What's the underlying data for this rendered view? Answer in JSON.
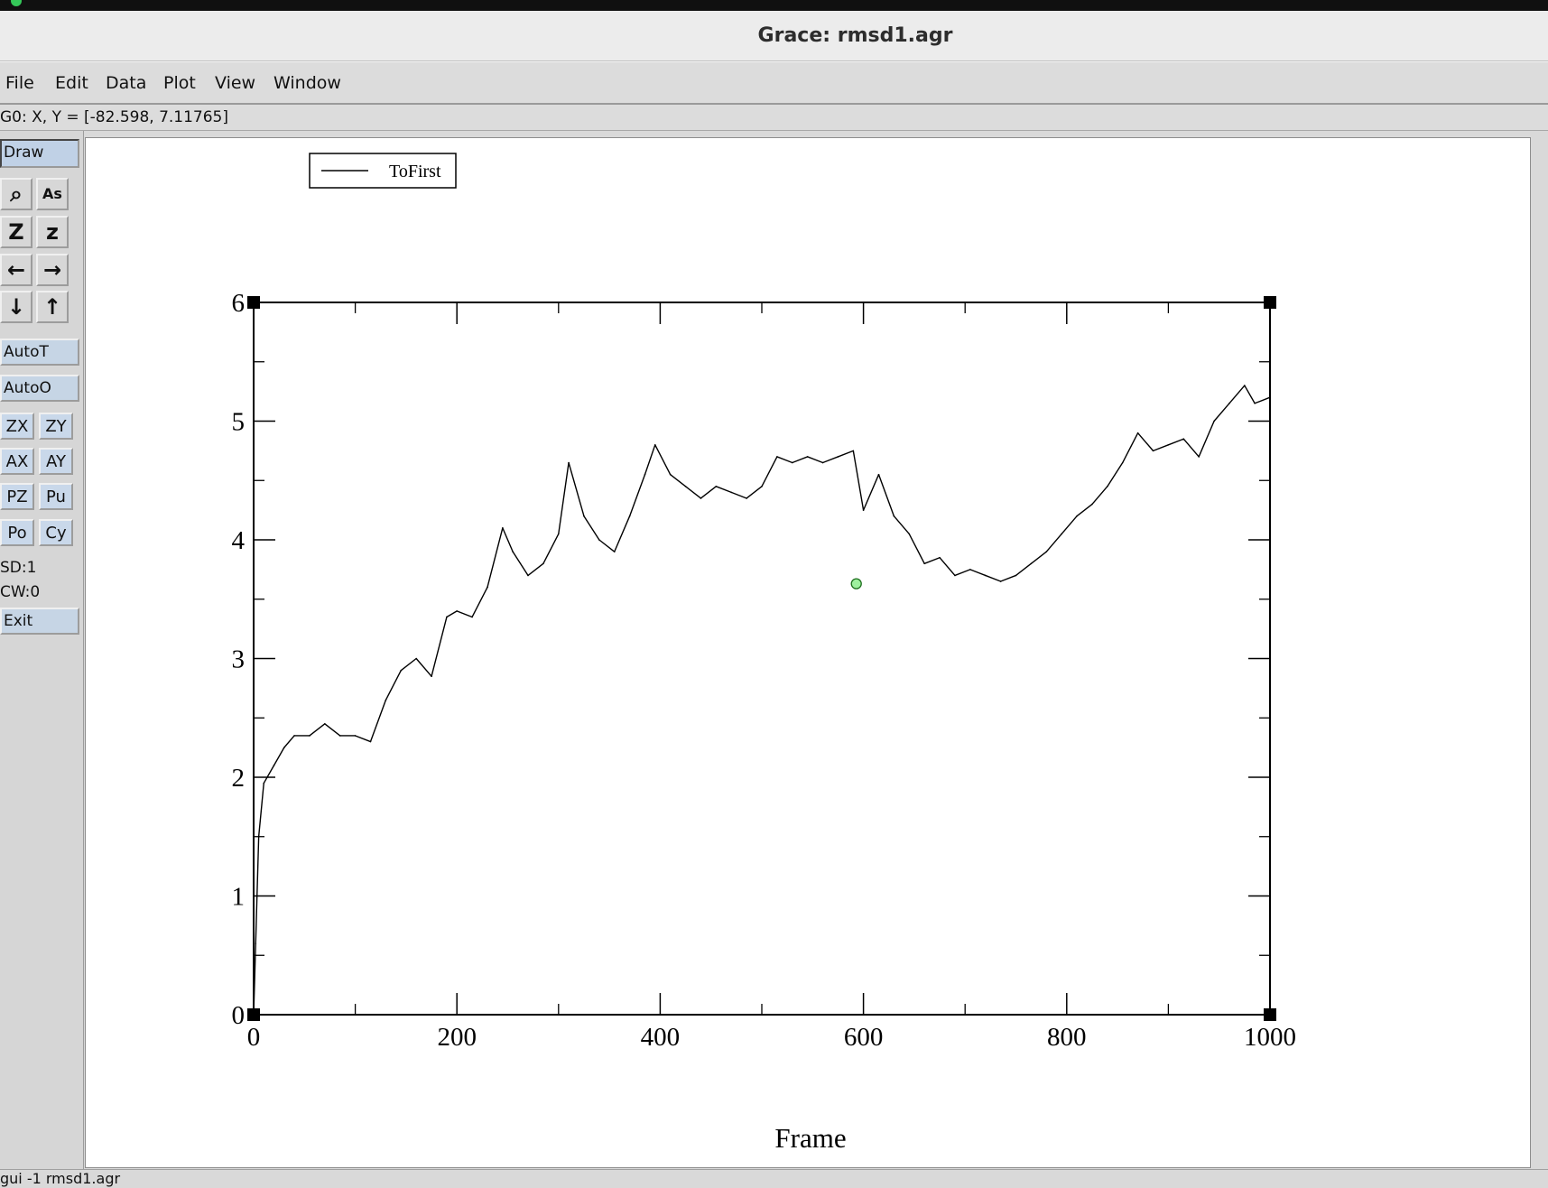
{
  "window": {
    "title": "Grace: rmsd1.agr"
  },
  "menu": {
    "items": [
      "File",
      "Edit",
      "Data",
      "Plot",
      "View",
      "Window"
    ]
  },
  "status": {
    "locator": "G0: X, Y = [-82.598, 7.11765]",
    "sd": "SD:1",
    "cw": "CW:0",
    "bottom": "gui -1 rmsd1.agr"
  },
  "toolbar": {
    "draw": "Draw",
    "autot": "AutoT",
    "autoo": "AutoO",
    "zx": "ZX",
    "zy": "ZY",
    "ax": "AX",
    "ay": "AY",
    "pz": "PZ",
    "pu": "Pu",
    "po": "Po",
    "cy": "Cy",
    "exit": "Exit",
    "icons": {
      "zoom": "magnifier-icon",
      "autoscale": "as-icon",
      "zoom_in": "Z",
      "zoom_out": "z",
      "left": "arrow-left-icon",
      "right": "arrow-right-icon",
      "down": "arrow-down-icon",
      "up": "arrow-up-icon"
    }
  },
  "chart_data": {
    "type": "line",
    "xlabel": "Frame",
    "ylabel": "",
    "xlim": [
      0,
      1000
    ],
    "ylim": [
      0,
      6
    ],
    "x_ticks": [
      0,
      200,
      400,
      600,
      800,
      1000
    ],
    "y_ticks": [
      0,
      1,
      2,
      3,
      4,
      5,
      6
    ],
    "legend": [
      "ToFirst"
    ],
    "legend_placement": "top-left",
    "grid": false,
    "series": [
      {
        "name": "ToFirst",
        "x": [
          0,
          2,
          5,
          10,
          20,
          30,
          40,
          55,
          70,
          85,
          100,
          115,
          130,
          145,
          160,
          175,
          190,
          200,
          215,
          230,
          245,
          255,
          270,
          285,
          300,
          310,
          325,
          340,
          355,
          370,
          385,
          395,
          410,
          425,
          440,
          455,
          470,
          485,
          500,
          515,
          530,
          545,
          560,
          575,
          590,
          600,
          615,
          630,
          645,
          660,
          675,
          690,
          705,
          720,
          735,
          750,
          765,
          780,
          795,
          810,
          825,
          840,
          855,
          870,
          885,
          900,
          915,
          930,
          945,
          960,
          975,
          985,
          1000
        ],
        "y": [
          0.0,
          0.6,
          1.5,
          1.95,
          2.1,
          2.25,
          2.35,
          2.35,
          2.45,
          2.35,
          2.35,
          2.3,
          2.65,
          2.9,
          3.0,
          2.85,
          3.35,
          3.4,
          3.35,
          3.6,
          4.1,
          3.9,
          3.7,
          3.8,
          4.05,
          4.65,
          4.2,
          4.0,
          3.9,
          4.2,
          4.55,
          4.8,
          4.55,
          4.45,
          4.35,
          4.45,
          4.4,
          4.35,
          4.45,
          4.7,
          4.65,
          4.7,
          4.65,
          4.7,
          4.75,
          4.25,
          4.55,
          4.2,
          4.05,
          3.8,
          3.85,
          3.7,
          3.75,
          3.7,
          3.65,
          3.7,
          3.8,
          3.9,
          4.05,
          4.2,
          4.3,
          4.45,
          4.65,
          4.9,
          4.75,
          4.8,
          4.85,
          4.7,
          5.0,
          5.15,
          5.3,
          5.15,
          5.2
        ]
      }
    ],
    "marker": {
      "x": 593,
      "y": 3.63
    }
  }
}
